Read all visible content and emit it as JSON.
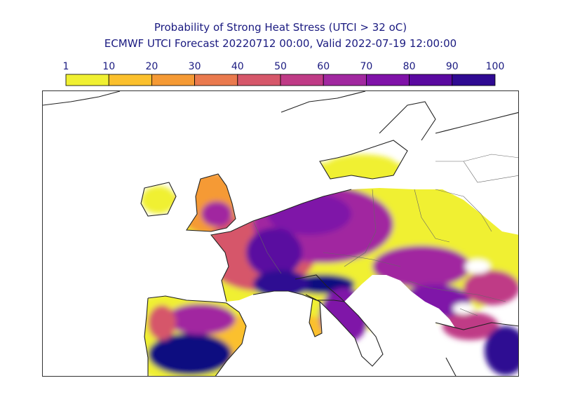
{
  "title": {
    "line1": "Probability of Strong Heat Stress (UTCI > 32 oC)",
    "line2": "ECMWF UTCI Forecast 20220712 00:00, Valid 2022-07-19 12:00:00"
  },
  "legend": {
    "ticks": [
      "1",
      "10",
      "20",
      "30",
      "40",
      "50",
      "60",
      "70",
      "80",
      "90",
      "100"
    ],
    "colors": [
      "#f0f032",
      "#fbc02d",
      "#f59a35",
      "#ea7a4e",
      "#d6576a",
      "#bf3b86",
      "#a128a0",
      "#7f12a8",
      "#5a09a0",
      "#2f0a92",
      "#0d0a80"
    ]
  },
  "map": {
    "region": "Western and Central Europe",
    "coastline_color": "#222222",
    "border_color": "#666666",
    "no_data_color": "#ffffff"
  }
}
